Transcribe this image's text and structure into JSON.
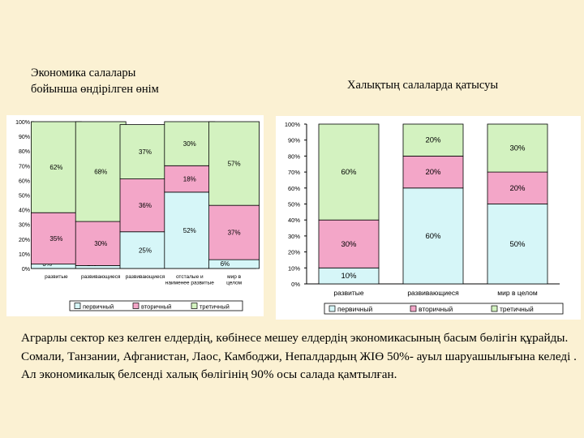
{
  "titles": {
    "left": "Экономика салалары\nбойынша өндірілген өнім",
    "right": "Халықтың салаларда қатысуы"
  },
  "chart_data": [
    {
      "type": "bar",
      "stacked": true,
      "categories": [
        "развитые",
        "развивающиеся",
        "развивающиеся",
        "отсталые и наименее развитые",
        "мир в целом"
      ],
      "series": [
        {
          "name": "первичный",
          "values": [
            3,
            2,
            25,
            52,
            6
          ]
        },
        {
          "name": "вторичный",
          "values": [
            35,
            30,
            36,
            18,
            37
          ]
        },
        {
          "name": "третичный",
          "values": [
            62,
            68,
            37,
            30,
            57
          ]
        }
      ],
      "data_labels": [
        [
          "3%",
          "35%",
          "62%"
        ],
        [
          "2%",
          "30%",
          "68%"
        ],
        [
          "25%",
          "36%",
          "37%"
        ],
        [
          "52%",
          "18%",
          "30%"
        ],
        [
          "6%",
          "37%",
          "57%"
        ]
      ],
      "y_ticks": [
        "0%",
        "10%",
        "20%",
        "30%",
        "40%",
        "50%",
        "60%",
        "70%",
        "80%",
        "90%",
        "100%"
      ],
      "ylim": [
        0,
        100
      ],
      "legend_position": "bottom",
      "grid": false,
      "colors": {
        "первичный": "#d6f6f8",
        "вторичный": "#f3a6c8",
        "третичный": "#d3f2c0"
      }
    },
    {
      "type": "bar",
      "stacked": true,
      "categories": [
        "развитые",
        "развивающиеся",
        "мир в целом"
      ],
      "series": [
        {
          "name": "первичный",
          "values": [
            10,
            60,
            50
          ]
        },
        {
          "name": "вторичный",
          "values": [
            30,
            20,
            20
          ]
        },
        {
          "name": "третичный",
          "values": [
            60,
            20,
            30
          ]
        }
      ],
      "data_labels": [
        [
          "10%",
          "30%",
          "60%"
        ],
        [
          "60%",
          "20%",
          "20%"
        ],
        [
          "50%",
          "20%",
          "30%"
        ]
      ],
      "y_ticks": [
        "0%",
        "10%",
        "20%",
        "30%",
        "40%",
        "50%",
        "60%",
        "70%",
        "80%",
        "90%",
        "100%"
      ],
      "ylim": [
        0,
        100
      ],
      "legend_position": "bottom",
      "grid": false,
      "colors": {
        "первичный": "#d6f6f8",
        "вторичный": "#f3a6c8",
        "третичный": "#d3f2c0"
      }
    }
  ],
  "caption": "Аграрлы сектор кез келген елдердің, көбінесе мешеу елдердің экономикасының басым бөлігін құрайды. Сомали, Танзании, Афганистан, Лаос, Камбоджи, Непалдардың ЖІӨ 50%- ауыл шаруашылығына келеді . Ал экономикалық белсенді халық бөлігінің 90% осы салада қамтылған."
}
